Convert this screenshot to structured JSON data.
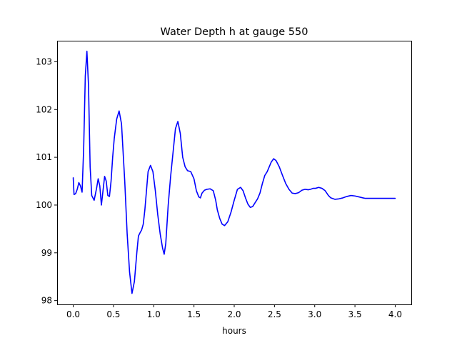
{
  "chart_data": {
    "type": "line",
    "title": "Water Depth h at gauge 550",
    "xlabel": "hours",
    "ylabel": "",
    "xlim": [
      -0.2,
      4.2
    ],
    "ylim": [
      97.92,
      103.44
    ],
    "xticks": [
      {
        "value": 0.0,
        "label": "0.0"
      },
      {
        "value": 0.5,
        "label": "0.5"
      },
      {
        "value": 1.0,
        "label": "1.0"
      },
      {
        "value": 1.5,
        "label": "1.5"
      },
      {
        "value": 2.0,
        "label": "2.0"
      },
      {
        "value": 2.5,
        "label": "2.5"
      },
      {
        "value": 3.0,
        "label": "3.0"
      },
      {
        "value": 3.5,
        "label": "3.5"
      },
      {
        "value": 4.0,
        "label": "4.0"
      }
    ],
    "yticks": [
      {
        "value": 98,
        "label": "98"
      },
      {
        "value": 99,
        "label": "99"
      },
      {
        "value": 100,
        "label": "100"
      },
      {
        "value": 101,
        "label": "101"
      },
      {
        "value": 102,
        "label": "102"
      },
      {
        "value": 103,
        "label": "103"
      }
    ],
    "grid": false,
    "legend": "none",
    "series": [
      {
        "color": "#0000ff",
        "x": [
          0.0,
          0.01,
          0.03,
          0.05,
          0.07,
          0.09,
          0.11,
          0.13,
          0.15,
          0.17,
          0.19,
          0.21,
          0.23,
          0.26,
          0.29,
          0.31,
          0.33,
          0.35,
          0.37,
          0.39,
          0.41,
          0.43,
          0.45,
          0.47,
          0.49,
          0.51,
          0.54,
          0.57,
          0.6,
          0.64,
          0.67,
          0.7,
          0.73,
          0.76,
          0.79,
          0.81,
          0.83,
          0.85,
          0.87,
          0.89,
          0.91,
          0.93,
          0.96,
          0.99,
          1.02,
          1.05,
          1.08,
          1.11,
          1.13,
          1.15,
          1.18,
          1.21,
          1.24,
          1.27,
          1.3,
          1.33,
          1.36,
          1.39,
          1.42,
          1.46,
          1.5,
          1.53,
          1.56,
          1.58,
          1.6,
          1.63,
          1.66,
          1.7,
          1.74,
          1.77,
          1.79,
          1.82,
          1.85,
          1.88,
          1.92,
          1.96,
          2.0,
          2.04,
          2.08,
          2.11,
          2.14,
          2.17,
          2.2,
          2.23,
          2.26,
          2.29,
          2.32,
          2.35,
          2.38,
          2.41,
          2.43,
          2.46,
          2.49,
          2.52,
          2.56,
          2.6,
          2.64,
          2.68,
          2.72,
          2.76,
          2.8,
          2.84,
          2.88,
          2.92,
          2.95,
          2.98,
          3.01,
          3.05,
          3.09,
          3.13,
          3.17,
          3.2,
          3.25,
          3.3,
          3.35,
          3.4,
          3.45,
          3.5,
          3.55,
          3.6,
          3.63,
          3.67,
          3.7,
          3.74,
          3.78,
          3.82,
          3.86,
          3.9,
          3.94,
          3.97,
          4.0
        ],
        "y": [
          100.57,
          100.22,
          100.24,
          100.33,
          100.47,
          100.4,
          100.27,
          101.2,
          102.7,
          103.22,
          102.5,
          100.8,
          100.2,
          100.1,
          100.35,
          100.55,
          100.4,
          100.0,
          100.3,
          100.6,
          100.5,
          100.2,
          100.18,
          100.5,
          101.0,
          101.4,
          101.8,
          101.97,
          101.7,
          100.5,
          99.4,
          98.6,
          98.15,
          98.4,
          99.0,
          99.35,
          99.42,
          99.48,
          99.6,
          99.9,
          100.3,
          100.7,
          100.83,
          100.7,
          100.3,
          99.8,
          99.4,
          99.1,
          98.97,
          99.2,
          100.0,
          100.6,
          101.1,
          101.6,
          101.75,
          101.5,
          101.0,
          100.8,
          100.72,
          100.7,
          100.55,
          100.3,
          100.17,
          100.15,
          100.25,
          100.31,
          100.33,
          100.34,
          100.3,
          100.1,
          99.9,
          99.72,
          99.6,
          99.57,
          99.65,
          99.85,
          100.1,
          100.33,
          100.37,
          100.3,
          100.15,
          100.02,
          99.95,
          99.97,
          100.05,
          100.13,
          100.25,
          100.45,
          100.62,
          100.7,
          100.78,
          100.9,
          100.97,
          100.93,
          100.8,
          100.62,
          100.45,
          100.33,
          100.25,
          100.24,
          100.26,
          100.31,
          100.33,
          100.32,
          100.33,
          100.35,
          100.35,
          100.37,
          100.35,
          100.3,
          100.2,
          100.15,
          100.12,
          100.13,
          100.15,
          100.18,
          100.2,
          100.19,
          100.17,
          100.15,
          100.14,
          100.14,
          100.14,
          100.14,
          100.14,
          100.14,
          100.14,
          100.14,
          100.14,
          100.14,
          100.14
        ]
      }
    ]
  }
}
